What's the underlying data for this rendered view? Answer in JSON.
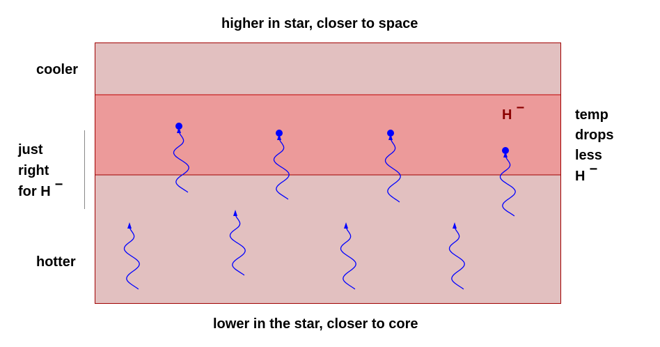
{
  "labels": {
    "top": "higher in star, closer to space",
    "bottom": "lower in the star, closer to core",
    "cooler": "cooler",
    "hotter": "hotter",
    "just_right": [
      "just",
      "right",
      "for H"
    ],
    "h_minus_base": "H",
    "minus": "−",
    "right_note": [
      "temp",
      "drops",
      "less",
      "H"
    ]
  },
  "colors": {
    "outer_layer": "#e2c0c0",
    "middle_layer": "#ec9a9a",
    "layer_border": "#c00000",
    "photon": "#0000ff",
    "h_minus_label": "#8b0000"
  }
}
